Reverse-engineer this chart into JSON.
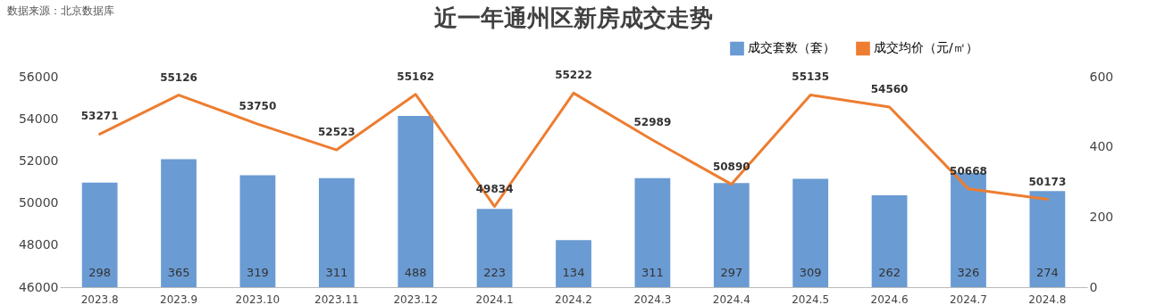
{
  "chart_data": {
    "type": "bar",
    "title": "近一年通州区新房成交走势",
    "annotations": [
      "数据来源：北京数据库"
    ],
    "categories": [
      "2023.8",
      "2023.9",
      "2023.10",
      "2023.11",
      "2023.12",
      "2024.1",
      "2024.2",
      "2024.3",
      "2024.4",
      "2024.5",
      "2024.6",
      "2024.7",
      "2024.8"
    ],
    "series": [
      {
        "name": "成交套数（套）",
        "axis": "y2",
        "color": "#6a9bd3",
        "values": [
          298,
          365,
          319,
          311,
          488,
          223,
          134,
          311,
          297,
          309,
          262,
          326,
          274
        ]
      },
      {
        "name": "成交均价（元/㎡）",
        "type": "line",
        "axis": "y",
        "color": "#ed7d31",
        "values": [
          53271,
          55126,
          53750,
          52523,
          55162,
          49834,
          55222,
          52989,
          50890,
          55135,
          54560,
          50668,
          50173
        ]
      }
    ],
    "ylim": [
      46000,
      56000
    ],
    "yticks": [
      46000,
      48000,
      50000,
      52000,
      54000,
      56000
    ],
    "y2lim": [
      0,
      600
    ],
    "y2ticks": [
      0,
      200,
      400,
      600
    ],
    "data_labels": true,
    "legend": "top right",
    "grid": false,
    "marker": "none",
    "line_style": "solid"
  }
}
